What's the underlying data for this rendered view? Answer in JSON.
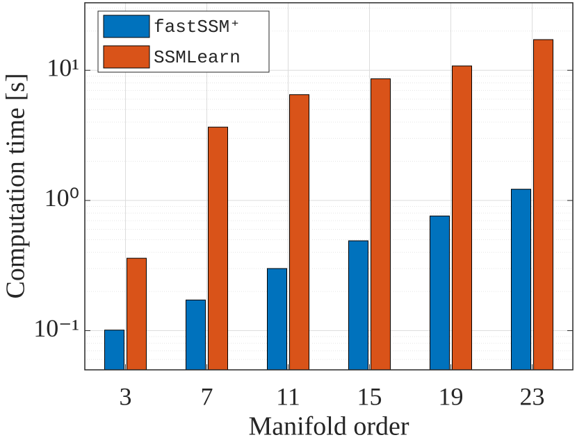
{
  "chart_data": {
    "type": "bar",
    "log_scale_y": true,
    "grid": true,
    "minor_grid": true,
    "legend_position": "top-left",
    "xlabel": "Manifold order",
    "ylabel": "Computation time [s]",
    "categories": [
      "3",
      "7",
      "11",
      "15",
      "19",
      "23"
    ],
    "series": [
      {
        "name": "fastSSM⁺",
        "color": "#0072BD",
        "values": [
          0.101,
          0.172,
          0.3,
          0.49,
          0.76,
          1.22
        ]
      },
      {
        "name": "SSMLearn",
        "color": "#D95319",
        "values": [
          0.36,
          3.66,
          6.5,
          8.6,
          10.8,
          17.2
        ]
      }
    ],
    "ylim": [
      0.05,
      33
    ],
    "yticks": [
      {
        "value": 0.1,
        "label": "10⁻¹"
      },
      {
        "value": 1,
        "label": "10⁰"
      },
      {
        "value": 10,
        "label": "10¹"
      }
    ]
  }
}
